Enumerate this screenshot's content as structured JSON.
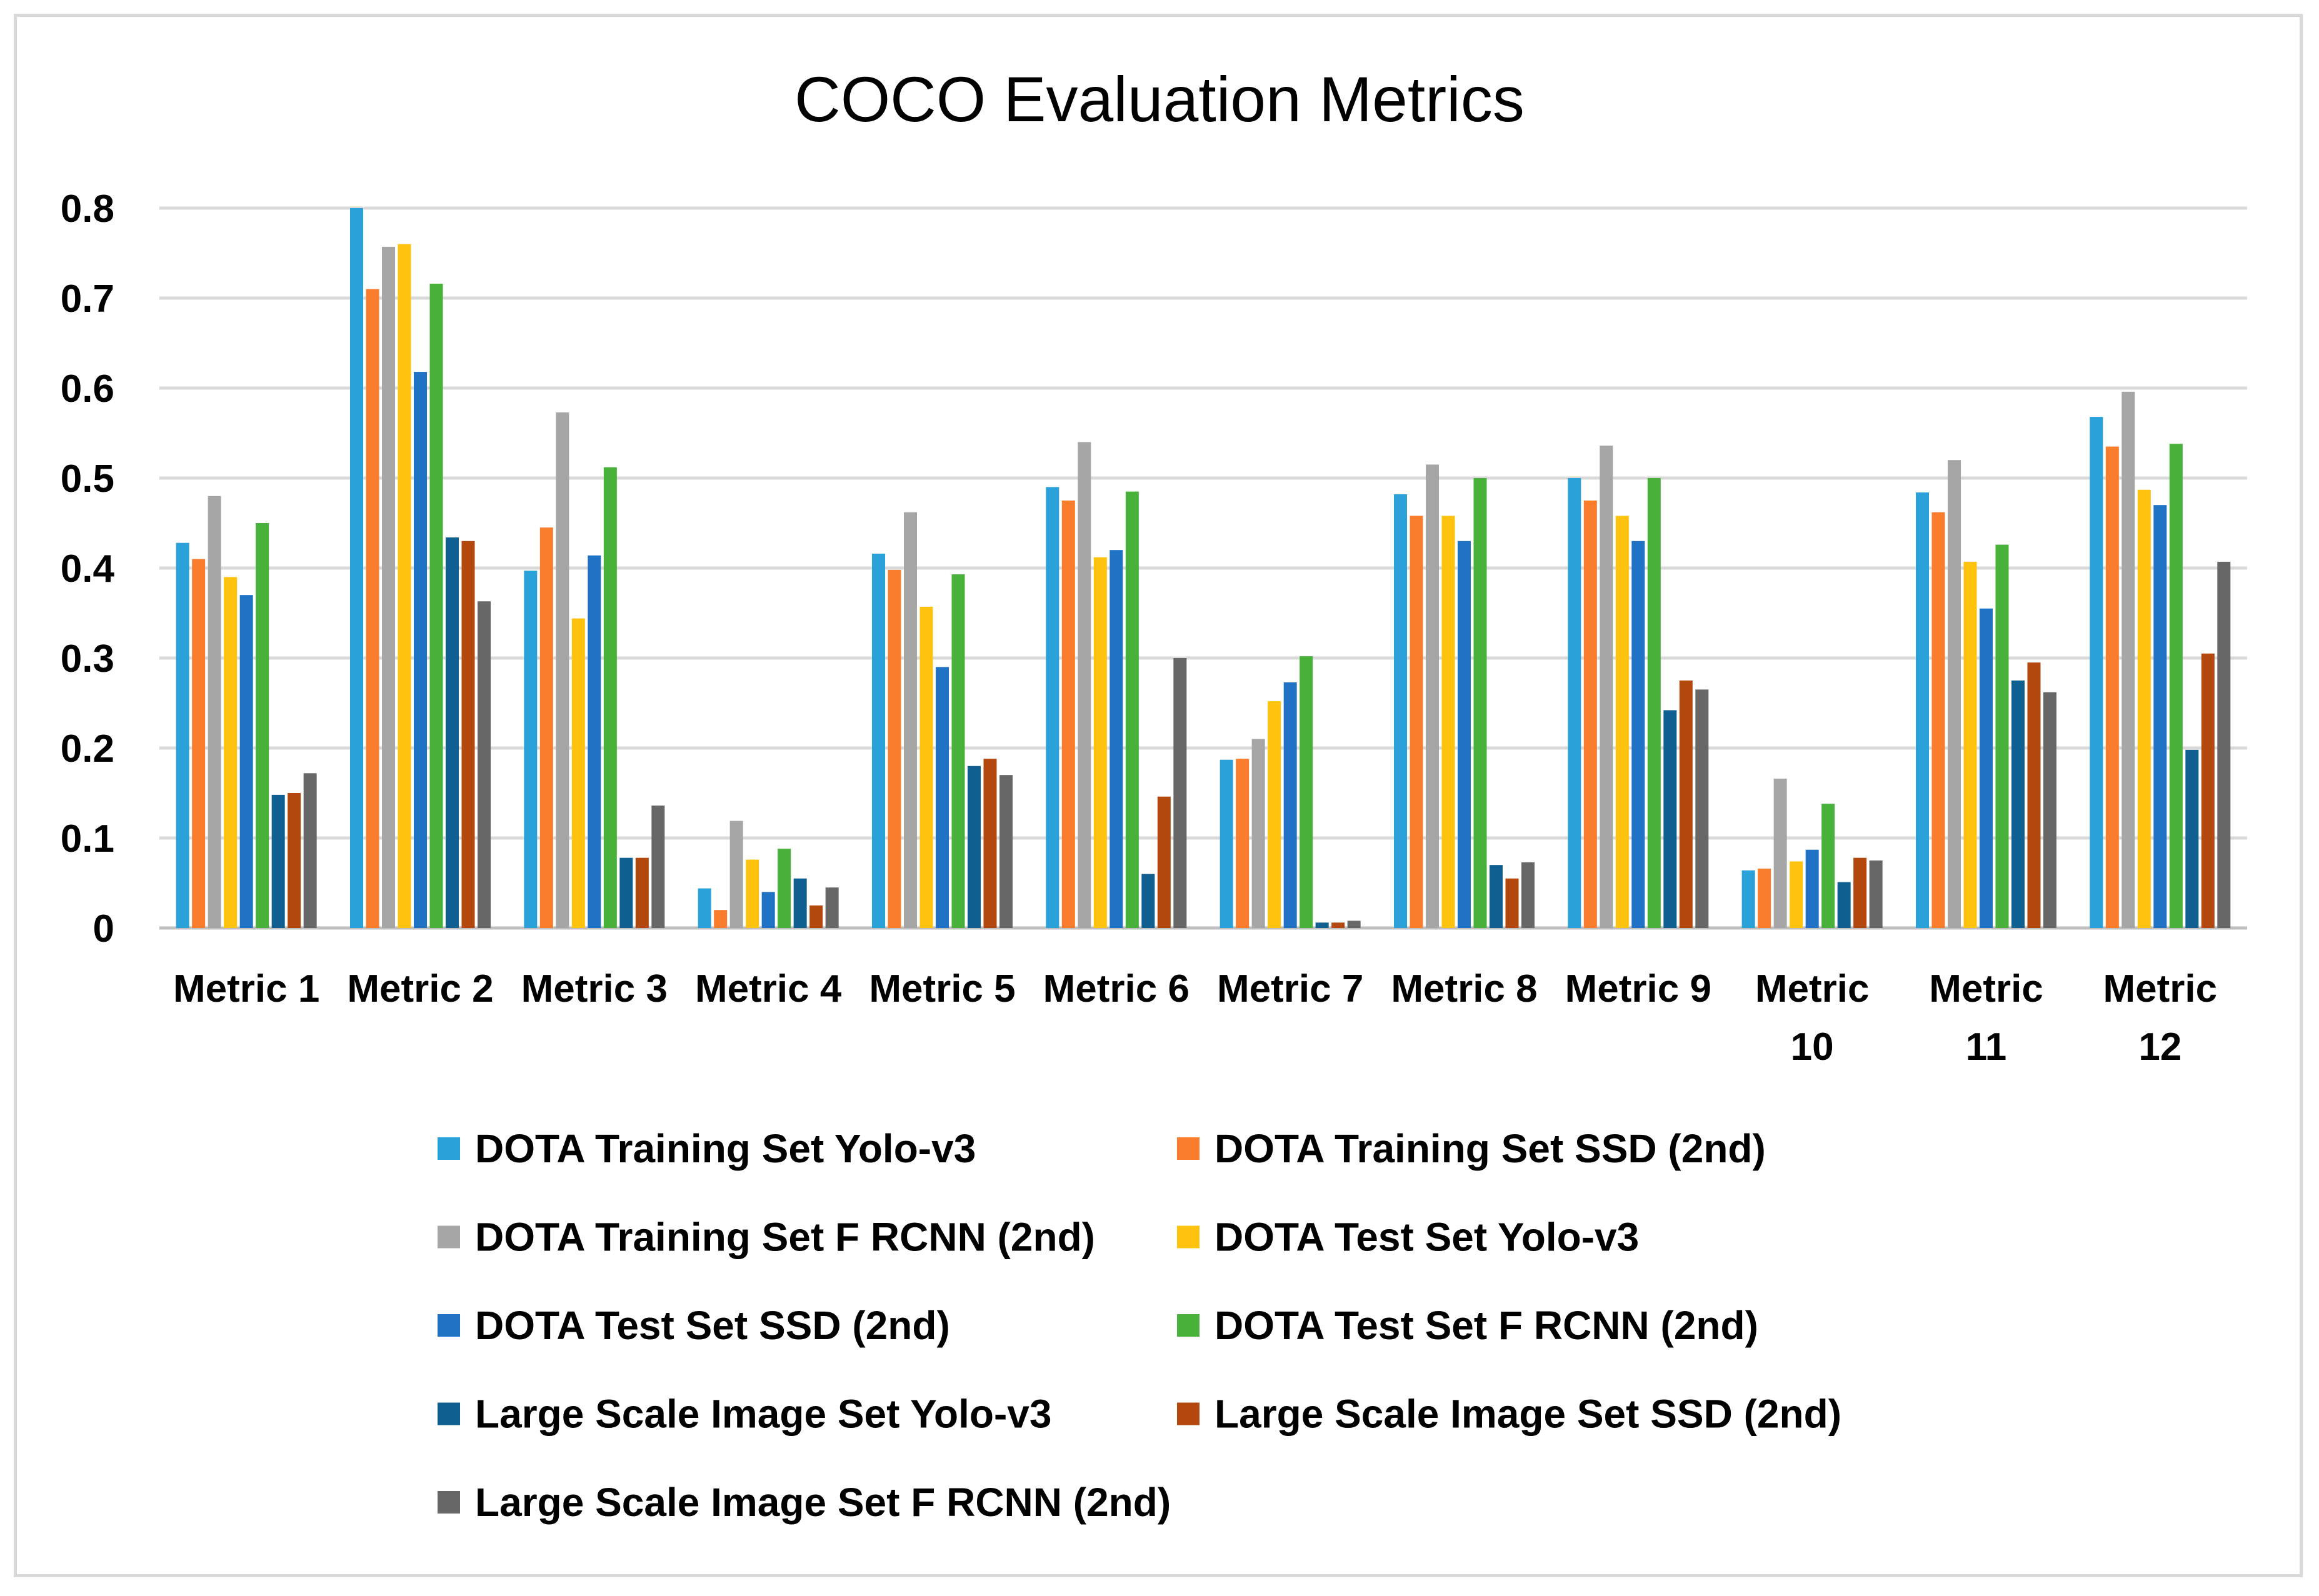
{
  "chart_data": {
    "type": "bar",
    "title": "COCO Evaluation  Metrics",
    "xlabel": "",
    "ylabel": "",
    "ylim": [
      0,
      0.8
    ],
    "yticks": [
      "0",
      "0.1",
      "0.2",
      "0.3",
      "0.4",
      "0.5",
      "0.6",
      "0.7",
      "0.8"
    ],
    "ytick_values": [
      0,
      0.1,
      0.2,
      0.3,
      0.4,
      0.5,
      0.6,
      0.7,
      0.8
    ],
    "grid": true,
    "legend_position": "bottom",
    "categories": [
      "Metric 1",
      "Metric 2",
      "Metric 3",
      "Metric 4",
      "Metric 5",
      "Metric 6",
      "Metric 7",
      "Metric 8",
      "Metric 9",
      "Metric 10",
      "Metric 11",
      "Metric 12"
    ],
    "series": [
      {
        "name": "DOTA Training Set Yolo-v3",
        "color": "#2aa1d9",
        "values": [
          0.428,
          0.8,
          0.397,
          0.044,
          0.416,
          0.49,
          0.187,
          0.482,
          0.5,
          0.064,
          0.484,
          0.568
        ]
      },
      {
        "name": "DOTA Training Set SSD (2nd)",
        "color": "#fa7c2d",
        "values": [
          0.41,
          0.71,
          0.445,
          0.02,
          0.398,
          0.475,
          0.188,
          0.458,
          0.475,
          0.066,
          0.462,
          0.535
        ]
      },
      {
        "name": "DOTA Training Set F RCNN (2nd)",
        "color": "#a6a6a6",
        "values": [
          0.48,
          0.757,
          0.573,
          0.119,
          0.462,
          0.54,
          0.21,
          0.515,
          0.536,
          0.166,
          0.52,
          0.596
        ]
      },
      {
        "name": "DOTA Test Set Yolo-v3",
        "color": "#ffc20e",
        "values": [
          0.39,
          0.76,
          0.344,
          0.076,
          0.357,
          0.412,
          0.252,
          0.458,
          0.458,
          0.074,
          0.407,
          0.487
        ]
      },
      {
        "name": "DOTA Test Set SSD (2nd)",
        "color": "#1f72c4",
        "values": [
          0.37,
          0.618,
          0.414,
          0.04,
          0.29,
          0.42,
          0.273,
          0.43,
          0.43,
          0.087,
          0.355,
          0.47
        ]
      },
      {
        "name": "DOTA Test Set F RCNN (2nd)",
        "color": "#47b13a",
        "values": [
          0.45,
          0.716,
          0.512,
          0.088,
          0.393,
          0.485,
          0.302,
          0.5,
          0.5,
          0.138,
          0.426,
          0.538
        ]
      },
      {
        "name": "Large Scale Image Set Yolo-v3",
        "color": "#0f5f91",
        "values": [
          0.148,
          0.434,
          0.078,
          0.055,
          0.18,
          0.06,
          0.006,
          0.07,
          0.242,
          0.051,
          0.275,
          0.198
        ]
      },
      {
        "name": "Large Scale Image Set SSD (2nd)",
        "color": "#b3480e",
        "values": [
          0.15,
          0.43,
          0.078,
          0.025,
          0.188,
          0.146,
          0.006,
          0.055,
          0.275,
          0.078,
          0.295,
          0.305
        ]
      },
      {
        "name": "Large Scale Image Set F RCNN (2nd)",
        "color": "#676767",
        "values": [
          0.172,
          0.363,
          0.136,
          0.045,
          0.17,
          0.3,
          0.008,
          0.073,
          0.265,
          0.075,
          0.262,
          0.407
        ]
      }
    ]
  }
}
